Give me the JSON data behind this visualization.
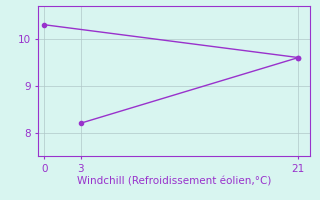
{
  "line1_x": [
    0,
    21
  ],
  "line1_y": [
    10.3,
    9.6
  ],
  "line2_x": [
    3,
    21
  ],
  "line2_y": [
    8.2,
    9.6
  ],
  "line_color": "#9932CC",
  "marker_color": "#9932CC",
  "bg_color": "#d8f5f0",
  "xlabel": "Windchill (Refroidissement éolien,°C)",
  "xlabel_color": "#9932CC",
  "tick_color": "#9932CC",
  "spine_color": "#9932CC",
  "grid_color": "#b0c8c8",
  "xlim": [
    -0.5,
    22
  ],
  "ylim": [
    7.5,
    10.7
  ],
  "yticks": [
    8,
    9,
    10
  ],
  "xticks": [
    0,
    3,
    21
  ],
  "xlabel_fontsize": 7.5,
  "tick_fontsize": 7.5,
  "linewidth": 1.0,
  "markersize": 3
}
